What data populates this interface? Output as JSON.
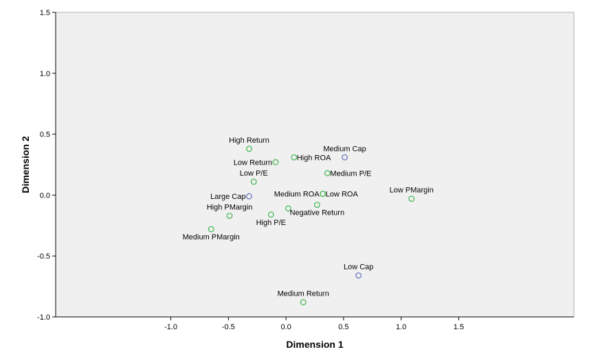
{
  "chart_data": {
    "type": "scatter",
    "title": "",
    "xlabel": "Dimension 1",
    "ylabel": "Dimension 2",
    "xlim": [
      -2.0,
      2.5
    ],
    "ylim": [
      -1.0,
      1.5
    ],
    "x_ticks": [
      "-1.0",
      "-0.5",
      "0.0",
      "0.5",
      "1.0",
      "1.5"
    ],
    "y_ticks": [
      "-1.0",
      "-0.5",
      "0.0",
      "0.5",
      "1.0",
      "1.5"
    ],
    "grid": false,
    "colors": {
      "plot_bg": "#f0f0f0",
      "green": "#3cb44b",
      "blue": "#5d6bbf"
    },
    "points": [
      {
        "label": "High Return",
        "x": -0.32,
        "y": 0.38,
        "group": "green",
        "anchor": "above"
      },
      {
        "label": "Low Return",
        "x": -0.09,
        "y": 0.27,
        "group": "green",
        "anchor": "left"
      },
      {
        "label": "High ROA",
        "x": 0.07,
        "y": 0.31,
        "group": "green",
        "anchor": "right"
      },
      {
        "label": "Medium Cap",
        "x": 0.51,
        "y": 0.31,
        "group": "blue",
        "anchor": "above"
      },
      {
        "label": "Medium P/E",
        "x": 0.36,
        "y": 0.18,
        "group": "green",
        "anchor": "right"
      },
      {
        "label": "Low P/E",
        "x": -0.28,
        "y": 0.11,
        "group": "green",
        "anchor": "above"
      },
      {
        "label": "Medium ROA",
        "x": 0.32,
        "y": 0.01,
        "group": "green",
        "anchor": "left"
      },
      {
        "label": "Low ROA",
        "x": 0.32,
        "y": 0.01,
        "group": "green",
        "anchor": "right"
      },
      {
        "label": "Low PMargin",
        "x": 1.09,
        "y": -0.03,
        "group": "green",
        "anchor": "above"
      },
      {
        "label": "Large Cap",
        "x": -0.32,
        "y": -0.01,
        "group": "blue",
        "anchor": "left"
      },
      {
        "label": "High PMargin",
        "x": -0.49,
        "y": -0.17,
        "group": "green",
        "anchor": "above"
      },
      {
        "label": "",
        "x": 0.02,
        "y": -0.11,
        "group": "green",
        "anchor": "none"
      },
      {
        "label": "Negative Return",
        "x": 0.27,
        "y": -0.08,
        "group": "green",
        "anchor": "below"
      },
      {
        "label": "High P/E",
        "x": -0.13,
        "y": -0.16,
        "group": "green",
        "anchor": "below"
      },
      {
        "label": "Medium PMargin",
        "x": -0.65,
        "y": -0.28,
        "group": "green",
        "anchor": "below"
      },
      {
        "label": "Low Cap",
        "x": 0.63,
        "y": -0.66,
        "group": "blue",
        "anchor": "above"
      },
      {
        "label": "Medium Return",
        "x": 0.15,
        "y": -0.88,
        "group": "green",
        "anchor": "above"
      }
    ]
  }
}
